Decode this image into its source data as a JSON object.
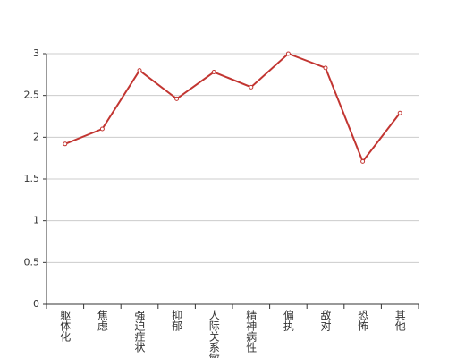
{
  "chart_data": {
    "type": "line",
    "categories": [
      "躯体化",
      "焦虑",
      "强迫症状",
      "抑郁",
      "人际关系敏感",
      "精神病性",
      "偏执",
      "敌对",
      "恐怖",
      "其他"
    ],
    "values": [
      1.92,
      2.1,
      2.8,
      2.46,
      2.78,
      2.6,
      3.0,
      2.83,
      1.71,
      2.29
    ],
    "color": "#c23531",
    "ylim": [
      0,
      3
    ],
    "yticks": [
      0,
      0.5,
      1,
      1.5,
      2,
      2.5,
      3
    ],
    "grid": true
  }
}
